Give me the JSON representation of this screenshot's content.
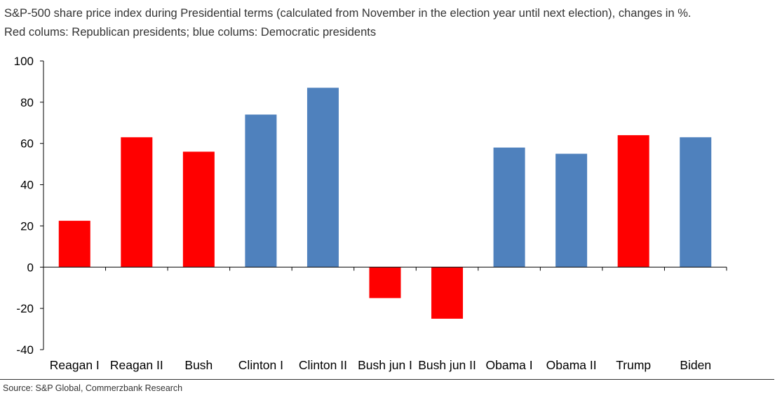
{
  "header": {
    "title": "S&P-500 share price index during Presidential terms (calculated from November in the election year until next election), changes in %.",
    "subtitle": "Red colums: Republican presidents; blue colums: Democratic presidents"
  },
  "source": "Source: S&P Global, Commerzbank Research",
  "colors": {
    "republican": "#ff0000",
    "democratic": "#4f81bd"
  },
  "chart_data": {
    "type": "bar",
    "categories": [
      "Reagan I",
      "Reagan II",
      "Bush",
      "Clinton I",
      "Clinton II",
      "Bush jun I",
      "Bush jun II",
      "Obama I",
      "Obama II",
      "Trump",
      "Biden"
    ],
    "values": [
      22.5,
      63,
      56,
      74,
      87,
      -15,
      -25,
      58,
      55,
      64,
      63
    ],
    "party": [
      "republican",
      "republican",
      "republican",
      "democratic",
      "democratic",
      "republican",
      "republican",
      "democratic",
      "democratic",
      "republican",
      "democratic"
    ],
    "ylim": [
      -40,
      100
    ],
    "yticks": [
      100,
      80,
      60,
      40,
      20,
      0,
      -20,
      -40
    ],
    "grid": false,
    "legend": "none"
  }
}
